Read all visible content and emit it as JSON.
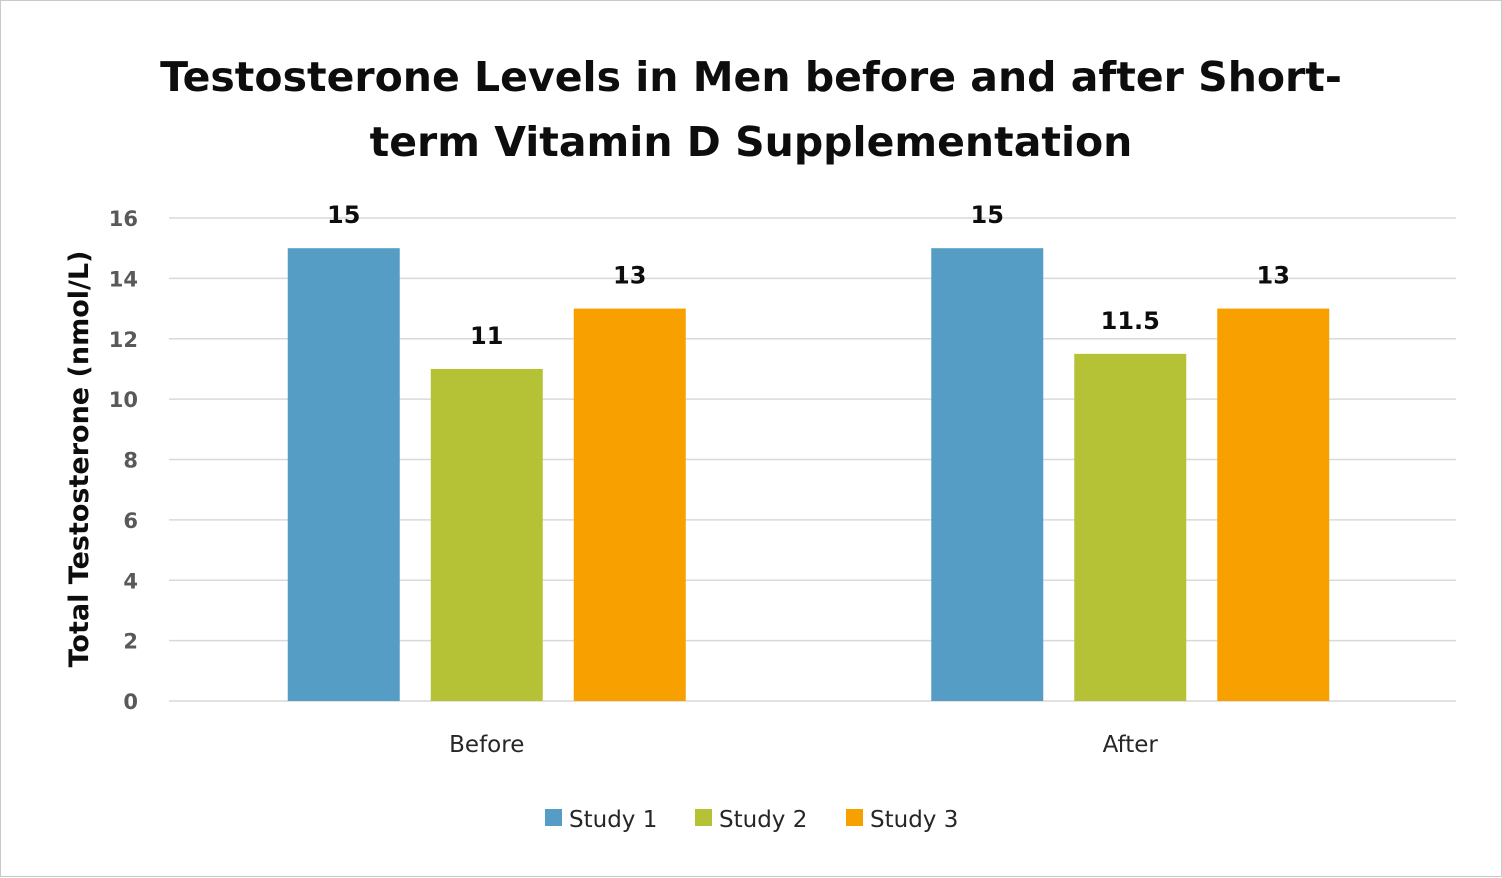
{
  "chart_data": {
    "type": "bar",
    "title_lines": [
      "Testosterone Levels in Men before and after Short-",
      "term Vitamin D Supplementation"
    ],
    "xlabel": "",
    "ylabel": "Total Testosterone (nmol/L)",
    "categories": [
      "Before",
      "After"
    ],
    "series": [
      {
        "name": "Study 1",
        "values": [
          15,
          15
        ],
        "labels": [
          "15",
          "15"
        ],
        "color": "#559dc4"
      },
      {
        "name": "Study 2",
        "values": [
          11,
          11.5
        ],
        "labels": [
          "11",
          "11.5"
        ],
        "color": "#b5c236"
      },
      {
        "name": "Study 3",
        "values": [
          13,
          13
        ],
        "labels": [
          "13",
          "13"
        ],
        "color": "#f7a000"
      }
    ],
    "ylim": [
      0,
      16
    ],
    "yticks": [
      "0",
      "2",
      "4",
      "6",
      "8",
      "10",
      "12",
      "14",
      "16"
    ],
    "grid": true,
    "legend_position": "bottom-center",
    "gridline_color": "#d9d9d9"
  }
}
